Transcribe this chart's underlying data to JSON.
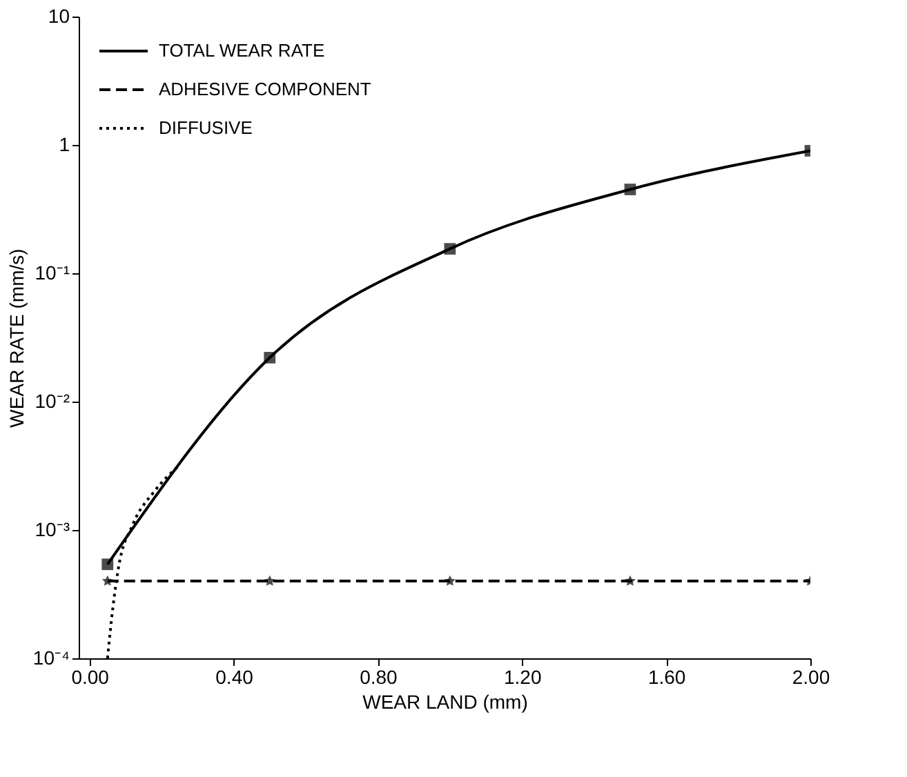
{
  "chart_data": {
    "type": "line",
    "xlabel": "WEAR LAND (mm)",
    "ylabel": "WEAR RATE (mm/s)",
    "log": "y",
    "grid": false,
    "legend": "top left",
    "xlim": [
      -0.03,
      2.0
    ],
    "ylim": [
      0.0001,
      10
    ],
    "xticks": [
      {
        "value": 0,
        "label": "0.00"
      },
      {
        "value": 0.4,
        "label": "0.40"
      },
      {
        "value": 0.8,
        "label": "0.80"
      },
      {
        "value": 1.2,
        "label": "1.20"
      },
      {
        "value": 1.6,
        "label": "1.60"
      },
      {
        "value": 2.0,
        "label": "2.00"
      }
    ],
    "yticks": [
      {
        "value": 0.0001,
        "label": "10⁻⁴"
      },
      {
        "value": 0.001,
        "label": "10⁻³"
      },
      {
        "value": 0.01,
        "label": "10⁻²"
      },
      {
        "value": 0.1,
        "label": "10⁻¹"
      },
      1,
      10
    ],
    "series": [
      {
        "name": "TOTAL WEAR RATE",
        "color": "#000000",
        "line_style": "solid",
        "marker": "square",
        "x": [
          0.05,
          0.5,
          1.0,
          1.5,
          2.0
        ],
        "values": [
          0.00054,
          0.022,
          0.155,
          0.45,
          0.9
        ]
      },
      {
        "name": "ADHESIVE COMPONENT",
        "color": "#000000",
        "line_style": "dashed",
        "marker": "star",
        "x": [
          0.05,
          0.5,
          1.0,
          1.5,
          2.0
        ],
        "values": [
          0.0004,
          0.0004,
          0.0004,
          0.0004,
          0.0004
        ]
      },
      {
        "name": "DIFFUSIVE",
        "color": "#000000",
        "line_style": "dotted",
        "marker": "none",
        "x": [
          0.05,
          0.065,
          0.08,
          0.12,
          0.18,
          0.25
        ],
        "values": [
          0.0001,
          0.00025,
          0.0005,
          0.0011,
          0.002,
          0.0032
        ]
      }
    ]
  }
}
